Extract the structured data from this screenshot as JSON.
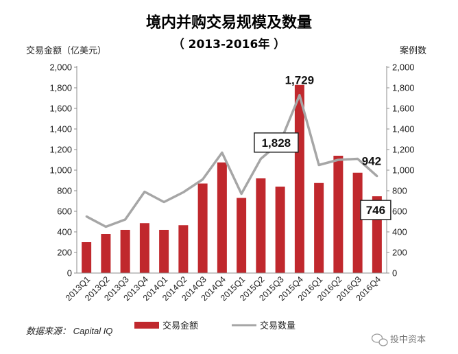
{
  "chart_data": {
    "type": "bar",
    "title": "境内并购交易规模及数量",
    "subtitle": "（ 2013-2016年 ）",
    "ylabel_left": "交易金额（亿美元）",
    "ylabel_right": "案例数",
    "categories": [
      "2013Q1",
      "2013Q2",
      "2013Q3",
      "2013Q4",
      "2014Q1",
      "2014Q2",
      "2014Q3",
      "2014Q4",
      "2015Q1",
      "2015Q2",
      "2015Q3",
      "2015Q4",
      "2016Q1",
      "2016Q2",
      "2016Q3",
      "2016Q4"
    ],
    "ylim_left": [
      0,
      2000
    ],
    "ylim_right": [
      0,
      2000
    ],
    "yticks": [
      "0",
      "200",
      "400",
      "600",
      "800",
      "1,000",
      "1,200",
      "1,400",
      "1,600",
      "1,800",
      "2,000"
    ],
    "series": [
      {
        "name": "交易金额",
        "type": "bar",
        "axis": "left",
        "color": "#c0282d",
        "values": [
          300,
          380,
          420,
          485,
          420,
          465,
          870,
          1075,
          730,
          920,
          840,
          1828,
          875,
          1140,
          975,
          746
        ]
      },
      {
        "name": "交易数量",
        "type": "line",
        "axis": "right",
        "color": "#a6a6a6",
        "values": [
          550,
          450,
          520,
          790,
          690,
          785,
          910,
          1170,
          770,
          1110,
          1270,
          1729,
          1050,
          1100,
          1110,
          942
        ]
      }
    ],
    "annotations": [
      {
        "text": "1,729",
        "series": "交易数量",
        "index": 11,
        "boxed": false
      },
      {
        "text": "942",
        "series": "交易数量",
        "index": 15,
        "boxed": false
      },
      {
        "text": "1,828",
        "series": "交易金额",
        "index": 11,
        "boxed": true
      },
      {
        "text": "746",
        "series": "交易金额",
        "index": 15,
        "boxed": true
      }
    ],
    "legend_position": "bottom",
    "grid": false
  },
  "source_note": "数据来源： Capital IQ",
  "watermark": "投中资本"
}
